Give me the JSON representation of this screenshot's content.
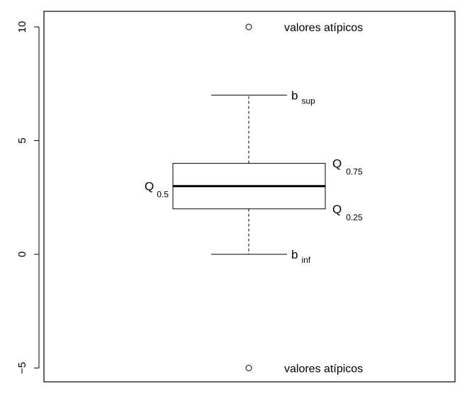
{
  "chart_data": {
    "type": "boxplot",
    "title": "",
    "xlabel": "",
    "ylabel": "",
    "ylim": [
      -5.5,
      11.0
    ],
    "y_ticks": [
      -5,
      0,
      5,
      10
    ],
    "y_tick_labels": [
      "−5",
      "0",
      "5",
      "10"
    ],
    "grid": false,
    "box": {
      "whisker_low": 0,
      "q1": 2,
      "median": 3,
      "q3": 4,
      "whisker_high": 7,
      "outliers": [
        10,
        -5
      ]
    },
    "annotations": {
      "outlier_label": "valores atípicos",
      "upper_whisker": {
        "main": "b",
        "sub": "sup"
      },
      "lower_whisker": {
        "main": "b",
        "sub": "inf"
      },
      "q3": {
        "main": "Q",
        "sub": "0.75"
      },
      "q1": {
        "main": "Q",
        "sub": "0.25"
      },
      "median": {
        "main": "Q",
        "sub": "0.5"
      }
    }
  }
}
